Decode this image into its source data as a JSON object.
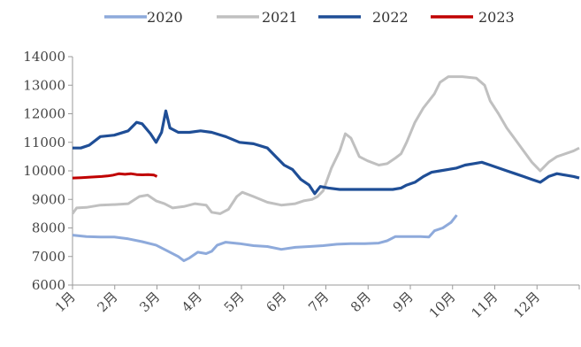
{
  "chart_data": {
    "type": "line",
    "categories": [
      "1月",
      "2月",
      "3月",
      "4月",
      "5月",
      "6月",
      "7月",
      "8月",
      "9月",
      "10月",
      "11月",
      "12月"
    ],
    "ylim": [
      6000,
      14000
    ],
    "yticks": [
      6000,
      7000,
      8000,
      9000,
      10000,
      11000,
      12000,
      13000,
      14000
    ],
    "grid": false,
    "legend_position": "top",
    "series": [
      {
        "name": "2020",
        "color": "#8eaadb",
        "points": [
          [
            0,
            7750
          ],
          [
            0.5,
            7700
          ],
          [
            1,
            7680
          ],
          [
            1.5,
            7680
          ],
          [
            2,
            7620
          ],
          [
            2.5,
            7520
          ],
          [
            3,
            7400
          ],
          [
            3.4,
            7200
          ],
          [
            3.8,
            7000
          ],
          [
            4.0,
            6850
          ],
          [
            4.2,
            6950
          ],
          [
            4.5,
            7150
          ],
          [
            4.8,
            7100
          ],
          [
            5.0,
            7180
          ],
          [
            5.2,
            7400
          ],
          [
            5.5,
            7500
          ],
          [
            6.0,
            7450
          ],
          [
            6.5,
            7380
          ],
          [
            7.0,
            7350
          ],
          [
            7.5,
            7250
          ],
          [
            8.0,
            7320
          ],
          [
            8.5,
            7350
          ],
          [
            9.0,
            7380
          ],
          [
            9.5,
            7430
          ],
          [
            10.0,
            7450
          ],
          [
            10.5,
            7450
          ],
          [
            11.0,
            7470
          ],
          [
            11.3,
            7550
          ],
          [
            11.6,
            7700
          ],
          [
            12.0,
            7700
          ],
          [
            12.5,
            7700
          ],
          [
            12.8,
            7680
          ],
          [
            13.0,
            7900
          ],
          [
            13.3,
            8000
          ],
          [
            13.6,
            8200
          ],
          [
            13.8,
            8450
          ]
        ]
      },
      {
        "name": "2021",
        "color": "#c0c0c0",
        "points": [
          [
            0,
            8500
          ],
          [
            0.15,
            8700
          ],
          [
            0.5,
            8720
          ],
          [
            1,
            8800
          ],
          [
            1.5,
            8820
          ],
          [
            2,
            8850
          ],
          [
            2.4,
            9100
          ],
          [
            2.7,
            9150
          ],
          [
            3.0,
            8950
          ],
          [
            3.3,
            8850
          ],
          [
            3.6,
            8700
          ],
          [
            4.0,
            8750
          ],
          [
            4.4,
            8850
          ],
          [
            4.8,
            8800
          ],
          [
            5.0,
            8550
          ],
          [
            5.3,
            8500
          ],
          [
            5.6,
            8650
          ],
          [
            5.9,
            9100
          ],
          [
            6.1,
            9250
          ],
          [
            6.5,
            9100
          ],
          [
            7.0,
            8900
          ],
          [
            7.5,
            8800
          ],
          [
            8.0,
            8850
          ],
          [
            8.3,
            8950
          ],
          [
            8.6,
            9000
          ],
          [
            8.8,
            9100
          ],
          [
            9.0,
            9300
          ],
          [
            9.3,
            10100
          ],
          [
            9.6,
            10700
          ],
          [
            9.8,
            11300
          ],
          [
            10.0,
            11150
          ],
          [
            10.3,
            10500
          ],
          [
            10.6,
            10350
          ],
          [
            11.0,
            10200
          ],
          [
            11.3,
            10250
          ],
          [
            11.6,
            10450
          ],
          [
            11.8,
            10600
          ],
          [
            12.0,
            11000
          ],
          [
            12.3,
            11700
          ],
          [
            12.6,
            12200
          ],
          [
            13.0,
            12700
          ],
          [
            13.2,
            13100
          ],
          [
            13.5,
            13300
          ],
          [
            14.0,
            13300
          ],
          [
            14.5,
            13250
          ],
          [
            14.8,
            13000
          ],
          [
            15.0,
            12450
          ],
          [
            15.3,
            12000
          ],
          [
            15.6,
            11500
          ],
          [
            15.9,
            11100
          ],
          [
            16.2,
            10700
          ],
          [
            16.5,
            10300
          ],
          [
            16.8,
            10000
          ],
          [
            17.1,
            10300
          ],
          [
            17.4,
            10500
          ],
          [
            17.7,
            10600
          ],
          [
            18.0,
            10700
          ],
          [
            18.2,
            10800
          ]
        ]
      },
      {
        "name": "2022",
        "color": "#1f4e96",
        "points": [
          [
            0,
            10800
          ],
          [
            0.3,
            10800
          ],
          [
            0.6,
            10900
          ],
          [
            1.0,
            11200
          ],
          [
            1.5,
            11250
          ],
          [
            2.0,
            11400
          ],
          [
            2.3,
            11700
          ],
          [
            2.5,
            11650
          ],
          [
            2.8,
            11300
          ],
          [
            3.0,
            11000
          ],
          [
            3.2,
            11350
          ],
          [
            3.35,
            12100
          ],
          [
            3.5,
            11500
          ],
          [
            3.8,
            11350
          ],
          [
            4.2,
            11350
          ],
          [
            4.6,
            11400
          ],
          [
            5.0,
            11350
          ],
          [
            5.5,
            11200
          ],
          [
            6.0,
            11000
          ],
          [
            6.5,
            10950
          ],
          [
            7.0,
            10800
          ],
          [
            7.3,
            10500
          ],
          [
            7.6,
            10200
          ],
          [
            7.9,
            10050
          ],
          [
            8.2,
            9700
          ],
          [
            8.5,
            9500
          ],
          [
            8.7,
            9200
          ],
          [
            8.9,
            9450
          ],
          [
            9.2,
            9400
          ],
          [
            9.6,
            9350
          ],
          [
            10.0,
            9350
          ],
          [
            10.5,
            9350
          ],
          [
            11.0,
            9350
          ],
          [
            11.5,
            9350
          ],
          [
            11.8,
            9400
          ],
          [
            12.0,
            9500
          ],
          [
            12.3,
            9600
          ],
          [
            12.6,
            9800
          ],
          [
            12.9,
            9950
          ],
          [
            13.2,
            10000
          ],
          [
            13.5,
            10050
          ],
          [
            13.8,
            10100
          ],
          [
            14.1,
            10200
          ],
          [
            14.4,
            10250
          ],
          [
            14.7,
            10300
          ],
          [
            15.0,
            10200
          ],
          [
            15.3,
            10100
          ],
          [
            15.6,
            10000
          ],
          [
            15.9,
            9900
          ],
          [
            16.2,
            9800
          ],
          [
            16.5,
            9700
          ],
          [
            16.8,
            9600
          ],
          [
            17.1,
            9800
          ],
          [
            17.4,
            9900
          ],
          [
            17.7,
            9850
          ],
          [
            18.0,
            9800
          ],
          [
            18.2,
            9750
          ]
        ]
      },
      {
        "name": "2023",
        "color": "#c00000",
        "points": [
          [
            0,
            9750
          ],
          [
            0.3,
            9760
          ],
          [
            0.6,
            9780
          ],
          [
            1.0,
            9800
          ],
          [
            1.2,
            9820
          ],
          [
            1.4,
            9850
          ],
          [
            1.6,
            9900
          ],
          [
            1.8,
            9880
          ],
          [
            2.0,
            9900
          ],
          [
            2.2,
            9870
          ],
          [
            2.4,
            9860
          ],
          [
            2.6,
            9870
          ],
          [
            2.8,
            9850
          ],
          [
            2.9,
            9800
          ]
        ]
      }
    ]
  }
}
